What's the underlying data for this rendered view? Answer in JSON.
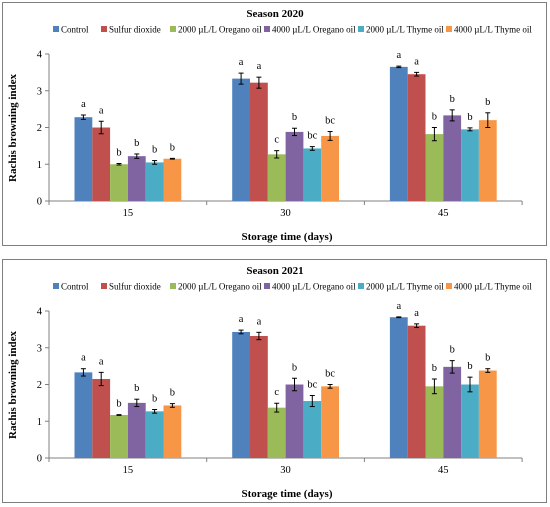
{
  "chart_data": [
    {
      "type": "bar",
      "title": "Season 2020",
      "xlabel": "Storage time (days)",
      "ylabel": "Rachis browning index",
      "ylim": [
        0,
        4
      ],
      "yticks": [
        "0",
        "1",
        "2",
        "3",
        "4"
      ],
      "categories": [
        "15",
        "30",
        "45"
      ],
      "legend_position": "top",
      "series": [
        {
          "name": "Control",
          "color": "#4f81bd",
          "values": [
            2.28,
            3.33,
            3.65
          ],
          "errors": [
            0.06,
            0.15,
            0.02
          ],
          "letters": [
            "a",
            "a",
            "a"
          ]
        },
        {
          "name": "Sulfur dioxide",
          "color": "#c0504d",
          "values": [
            2.0,
            3.22,
            3.45
          ],
          "errors": [
            0.17,
            0.15,
            0.05
          ],
          "letters": [
            "a",
            "a",
            "a"
          ]
        },
        {
          "name": "2000 µL/L Oregano oil",
          "color": "#9bbb59",
          "values": [
            1.0,
            1.27,
            1.82
          ],
          "errors": [
            0.02,
            0.1,
            0.18
          ],
          "letters": [
            "b",
            "c",
            "b"
          ]
        },
        {
          "name": "4000 µL/L Oregano oil",
          "color": "#8064a2",
          "values": [
            1.22,
            1.88,
            2.33
          ],
          "errors": [
            0.06,
            0.1,
            0.15
          ],
          "letters": [
            "b",
            "b",
            "b"
          ]
        },
        {
          "name": "2000 µL/L Thyme oil",
          "color": "#4bacc6",
          "values": [
            1.05,
            1.43,
            1.95
          ],
          "errors": [
            0.05,
            0.05,
            0.04
          ],
          "letters": [
            "b",
            "bc",
            "b"
          ]
        },
        {
          "name": "4000 µL/L Thyme oil",
          "color": "#f79646",
          "values": [
            1.15,
            1.77,
            2.2
          ],
          "errors": [
            0.01,
            0.12,
            0.2
          ],
          "letters": [
            "b",
            "bc",
            "b"
          ]
        }
      ]
    },
    {
      "type": "bar",
      "title": "Season 2021",
      "xlabel": "Storage time (days)",
      "ylabel": "Rachis browning index",
      "ylim": [
        0,
        4
      ],
      "yticks": [
        "0",
        "1",
        "2",
        "3",
        "4"
      ],
      "categories": [
        "15",
        "30",
        "45"
      ],
      "legend_position": "top",
      "series": [
        {
          "name": "Control",
          "color": "#4f81bd",
          "values": [
            2.33,
            3.43,
            3.83
          ],
          "errors": [
            0.1,
            0.05,
            0.01
          ],
          "letters": [
            "a",
            "a",
            "a"
          ]
        },
        {
          "name": "Sulfur dioxide",
          "color": "#c0504d",
          "values": [
            2.15,
            3.32,
            3.6
          ],
          "errors": [
            0.18,
            0.1,
            0.05
          ],
          "letters": [
            "a",
            "a",
            "a"
          ]
        },
        {
          "name": "2000 µL/L Oregano oil",
          "color": "#9bbb59",
          "values": [
            1.17,
            1.37,
            1.95
          ],
          "errors": [
            0.01,
            0.12,
            0.2
          ],
          "letters": [
            "b",
            "c",
            "b"
          ]
        },
        {
          "name": "4000 µL/L Oregano oil",
          "color": "#8064a2",
          "values": [
            1.5,
            2.0,
            2.48
          ],
          "errors": [
            0.1,
            0.17,
            0.17
          ],
          "letters": [
            "b",
            "b",
            "b"
          ]
        },
        {
          "name": "2000 µL/L Thyme oil",
          "color": "#4bacc6",
          "values": [
            1.27,
            1.55,
            2.0
          ],
          "errors": [
            0.05,
            0.15,
            0.2
          ],
          "letters": [
            "b",
            "bc",
            "b"
          ]
        },
        {
          "name": "4000 µL/L Thyme oil",
          "color": "#f79646",
          "values": [
            1.43,
            1.95,
            2.38
          ],
          "errors": [
            0.05,
            0.05,
            0.05
          ],
          "letters": [
            "b",
            "bc",
            "b"
          ]
        }
      ]
    }
  ]
}
